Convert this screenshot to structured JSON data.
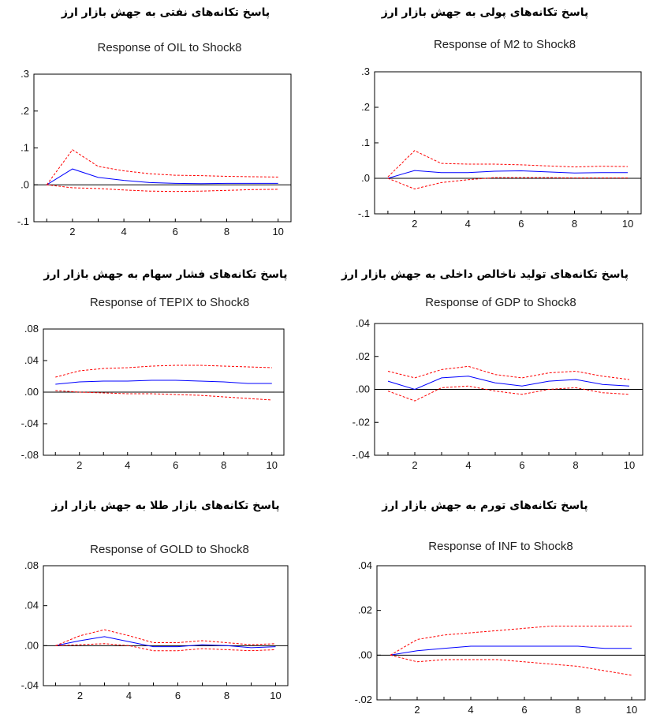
{
  "chart_data": [
    {
      "type": "line",
      "panel_title": "پاسخ تکانه‌های نفتی به جهش بازار ارز",
      "title": "Response of OIL to Shock8",
      "x": [
        1,
        2,
        3,
        4,
        5,
        6,
        7,
        8,
        9,
        10
      ],
      "xticks": [
        "2",
        "4",
        "6",
        "8",
        "10"
      ],
      "ylim": [
        -0.1,
        0.3
      ],
      "yticks": [
        -0.1,
        0.0,
        0.1,
        0.2,
        0.3
      ],
      "ytick_labels": [
        "-.1",
        ".0",
        ".1",
        ".2",
        ".3"
      ],
      "series": [
        {
          "role": "response",
          "color": "#0000ff",
          "dash": false,
          "values": [
            0.0,
            0.043,
            0.02,
            0.012,
            0.006,
            0.004,
            0.003,
            0.004,
            0.004,
            0.004
          ]
        },
        {
          "role": "upper",
          "color": "#ff0000",
          "dash": true,
          "values": [
            0.0,
            0.095,
            0.05,
            0.038,
            0.03,
            0.026,
            0.025,
            0.023,
            0.022,
            0.021
          ]
        },
        {
          "role": "lower",
          "color": "#ff0000",
          "dash": true,
          "values": [
            0.0,
            -0.008,
            -0.01,
            -0.014,
            -0.017,
            -0.018,
            -0.017,
            -0.015,
            -0.013,
            -0.012
          ]
        }
      ]
    },
    {
      "type": "line",
      "panel_title": "پاسخ تکانه‌های پولی به جهش بازار ارز",
      "title": "Response of M2 to Shock8",
      "x": [
        1,
        2,
        3,
        4,
        5,
        6,
        7,
        8,
        9,
        10
      ],
      "xticks": [
        "2",
        "4",
        "6",
        "8",
        "10"
      ],
      "ylim": [
        -0.1,
        0.3
      ],
      "yticks": [
        -0.1,
        0.0,
        0.1,
        0.2,
        0.3
      ],
      "ytick_labels": [
        "-.1",
        ".0",
        ".1",
        ".2",
        ".3"
      ],
      "series": [
        {
          "role": "response",
          "color": "#0000ff",
          "dash": false,
          "values": [
            0.0,
            0.022,
            0.016,
            0.016,
            0.02,
            0.021,
            0.018,
            0.015,
            0.016,
            0.016
          ]
        },
        {
          "role": "upper",
          "color": "#ff0000",
          "dash": true,
          "values": [
            0.004,
            0.078,
            0.042,
            0.04,
            0.04,
            0.038,
            0.035,
            0.032,
            0.034,
            0.033
          ]
        },
        {
          "role": "lower",
          "color": "#ff0000",
          "dash": true,
          "values": [
            0.0,
            -0.03,
            -0.012,
            -0.004,
            0.002,
            0.002,
            0.002,
            0.001,
            0.001,
            0.001
          ]
        }
      ]
    },
    {
      "type": "line",
      "panel_title": "پاسخ تکانه‌های فشار سهام به جهش بازار ارز",
      "title": "Response of TEPIX to Shock8",
      "x": [
        1,
        2,
        3,
        4,
        5,
        6,
        7,
        8,
        9,
        10
      ],
      "xticks": [
        "2",
        "4",
        "6",
        "8",
        "10"
      ],
      "ylim": [
        -0.08,
        0.08
      ],
      "yticks": [
        -0.08,
        -0.04,
        0.0,
        0.04,
        0.08
      ],
      "ytick_labels": [
        "-.08",
        "-.04",
        ".00",
        ".04",
        ".08"
      ],
      "series": [
        {
          "role": "response",
          "color": "#0000ff",
          "dash": false,
          "values": [
            0.01,
            0.013,
            0.014,
            0.014,
            0.015,
            0.015,
            0.014,
            0.013,
            0.011,
            0.011
          ]
        },
        {
          "role": "upper",
          "color": "#ff0000",
          "dash": true,
          "values": [
            0.019,
            0.027,
            0.03,
            0.031,
            0.033,
            0.034,
            0.034,
            0.033,
            0.032,
            0.031
          ]
        },
        {
          "role": "lower",
          "color": "#ff0000",
          "dash": true,
          "values": [
            0.002,
            0.0,
            -0.001,
            -0.002,
            -0.002,
            -0.003,
            -0.004,
            -0.006,
            -0.008,
            -0.01
          ]
        }
      ]
    },
    {
      "type": "line",
      "panel_title": "پاسخ تکانه‌های تولید ناخالص داخلی به جهش بازار ارز",
      "title": "Response of GDP to Shock8",
      "x": [
        1,
        2,
        3,
        4,
        5,
        6,
        7,
        8,
        9,
        10
      ],
      "xticks": [
        "2",
        "4",
        "6",
        "8",
        "10"
      ],
      "ylim": [
        -0.04,
        0.04
      ],
      "yticks": [
        -0.04,
        -0.02,
        0.0,
        0.02,
        0.04
      ],
      "ytick_labels": [
        "-.04",
        "-.02",
        ".00",
        ".02",
        ".04"
      ],
      "series": [
        {
          "role": "response",
          "color": "#0000ff",
          "dash": false,
          "values": [
            0.005,
            0.0,
            0.007,
            0.008,
            0.004,
            0.002,
            0.005,
            0.006,
            0.003,
            0.002
          ]
        },
        {
          "role": "upper",
          "color": "#ff0000",
          "dash": true,
          "values": [
            0.011,
            0.007,
            0.012,
            0.014,
            0.009,
            0.007,
            0.01,
            0.011,
            0.008,
            0.006
          ]
        },
        {
          "role": "lower",
          "color": "#ff0000",
          "dash": true,
          "values": [
            -0.001,
            -0.007,
            0.001,
            0.002,
            -0.001,
            -0.003,
            0.0,
            0.001,
            -0.002,
            -0.003
          ]
        }
      ]
    },
    {
      "type": "line",
      "panel_title": "پاسخ تکانه‌های بازار طلا به جهش بازار ارز",
      "title": "Response of GOLD to Shock8",
      "x": [
        1,
        2,
        3,
        4,
        5,
        6,
        7,
        8,
        9,
        10
      ],
      "xticks": [
        "2",
        "4",
        "6",
        "8",
        "10"
      ],
      "ylim": [
        -0.04,
        0.08
      ],
      "yticks": [
        -0.04,
        0.0,
        0.04,
        0.08
      ],
      "ytick_labels": [
        "-.04",
        ".00",
        ".04",
        ".08"
      ],
      "series": [
        {
          "role": "response",
          "color": "#0000ff",
          "dash": false,
          "values": [
            0.0,
            0.005,
            0.009,
            0.004,
            -0.001,
            -0.001,
            0.001,
            0.0,
            -0.002,
            -0.001
          ]
        },
        {
          "role": "upper",
          "color": "#ff0000",
          "dash": true,
          "values": [
            0.0,
            0.01,
            0.016,
            0.01,
            0.003,
            0.003,
            0.005,
            0.003,
            0.001,
            0.002
          ]
        },
        {
          "role": "lower",
          "color": "#ff0000",
          "dash": true,
          "values": [
            0.0,
            0.001,
            0.002,
            0.0,
            -0.005,
            -0.005,
            -0.003,
            -0.004,
            -0.005,
            -0.004
          ]
        }
      ]
    },
    {
      "type": "line",
      "panel_title": "پاسخ تکانه‌های تورم به جهش بازار ارز",
      "title": "Response of INF to Shock8",
      "x": [
        1,
        2,
        3,
        4,
        5,
        6,
        7,
        8,
        9,
        10
      ],
      "xticks": [
        "2",
        "4",
        "6",
        "8",
        "10"
      ],
      "ylim": [
        -0.02,
        0.04
      ],
      "yticks": [
        -0.02,
        0.0,
        0.02,
        0.04
      ],
      "ytick_labels": [
        "-.02",
        ".00",
        ".02",
        ".04"
      ],
      "series": [
        {
          "role": "response",
          "color": "#0000ff",
          "dash": false,
          "values": [
            0.0,
            0.002,
            0.003,
            0.004,
            0.004,
            0.004,
            0.004,
            0.004,
            0.003,
            0.003
          ]
        },
        {
          "role": "upper",
          "color": "#ff0000",
          "dash": true,
          "values": [
            0.0,
            0.007,
            0.009,
            0.01,
            0.011,
            0.012,
            0.013,
            0.013,
            0.013,
            0.013
          ]
        },
        {
          "role": "lower",
          "color": "#ff0000",
          "dash": true,
          "values": [
            0.0,
            -0.003,
            -0.002,
            -0.002,
            -0.002,
            -0.003,
            -0.004,
            -0.005,
            -0.007,
            -0.009
          ]
        }
      ]
    }
  ]
}
